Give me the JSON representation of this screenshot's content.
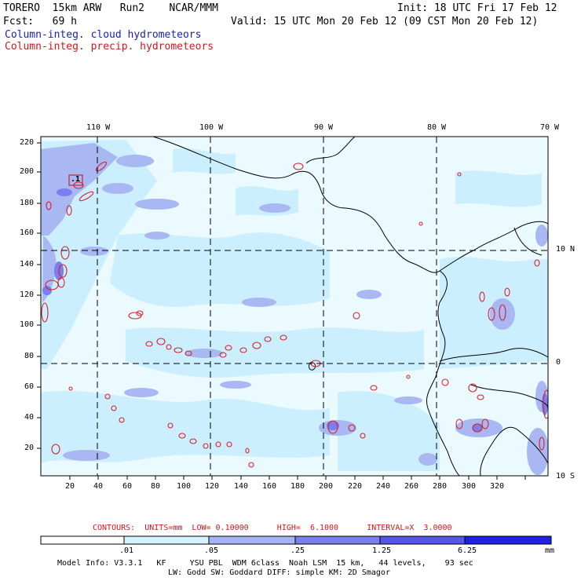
{
  "header": {
    "model": "TORERO  15km ARW   Run2    NCAR/MMM",
    "init": "Init: 18 UTC Fri 17 Feb 12",
    "fcst": "Fcst:   69 h",
    "valid": "Valid: 15 UTC Mon 20 Feb 12 (09 CST Mon 20 Feb 12)",
    "legend_cloud": "Column-integ. cloud hydrometeors",
    "legend_precip": "Column-integ. precip. hydrometeors"
  },
  "map": {
    "lon_labels": [
      "110 W",
      "100 W",
      "90 W",
      "80 W",
      "70 W"
    ],
    "lat_labels": [
      "10 N",
      "0",
      "10 S"
    ],
    "y_ticks": [
      "220",
      "200",
      "180",
      "160",
      "140",
      "120",
      "100",
      "80",
      "60",
      "40",
      "20"
    ],
    "x_ticks": [
      "20",
      "40",
      "60",
      "80",
      "100",
      "120",
      "140",
      "160",
      "180",
      "200",
      "220",
      "240",
      "260",
      "280",
      "300",
      "320"
    ],
    "box_label": ".1"
  },
  "contours": {
    "label": "CONTOURS:  UNITS=mm  LOW= 0.10000      HIGH=  6.1000      INTERVAL=X  3.0000"
  },
  "colorbar": {
    "ticks": [
      ".01",
      ".05",
      ".25",
      "1.25",
      "6.25"
    ],
    "unit": "mm",
    "colors": [
      "#ffffff",
      "#d6f4ff",
      "#bfe6ff",
      "#a6b4f5",
      "#7a7eee",
      "#5555e8",
      "#1f1fe6"
    ]
  },
  "footer": {
    "line1": "Model Info: V3.3.1   KF     YSU PBL  WDM 6class  Noah LSM  15 km,   44 levels,    93 sec",
    "line2": "LW: Godd SW: Goddard DIFF: simple KM: 2D Smagor"
  }
}
